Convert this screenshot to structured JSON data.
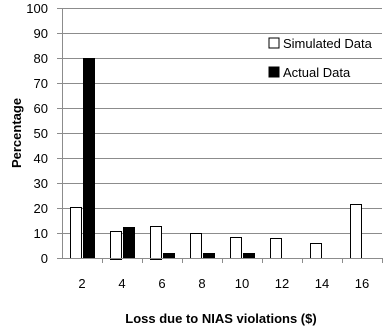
{
  "chart_data": {
    "type": "bar",
    "title": "",
    "xlabel": "Loss due to NIAS violations ($)",
    "ylabel": "Percentage",
    "categories": [
      "2",
      "4",
      "6",
      "8",
      "10",
      "12",
      "14",
      "16"
    ],
    "series": [
      {
        "name": "Simulated Data",
        "color": "#ffffff",
        "stroke": "#000000",
        "values": [
          20.5,
          11,
          13,
          10,
          8.5,
          8,
          6,
          21.5
        ]
      },
      {
        "name": "Actual Data",
        "color": "#000000",
        "stroke": "#000000",
        "values": [
          80,
          12.5,
          2,
          2,
          2,
          0,
          0,
          0
        ]
      }
    ],
    "ylim": [
      0,
      100
    ],
    "yticks": [
      0,
      10,
      20,
      30,
      40,
      50,
      60,
      70,
      80,
      90,
      100
    ],
    "grid": "horizontal",
    "gridColor": "#8c8c8c",
    "legend": "top-right"
  }
}
